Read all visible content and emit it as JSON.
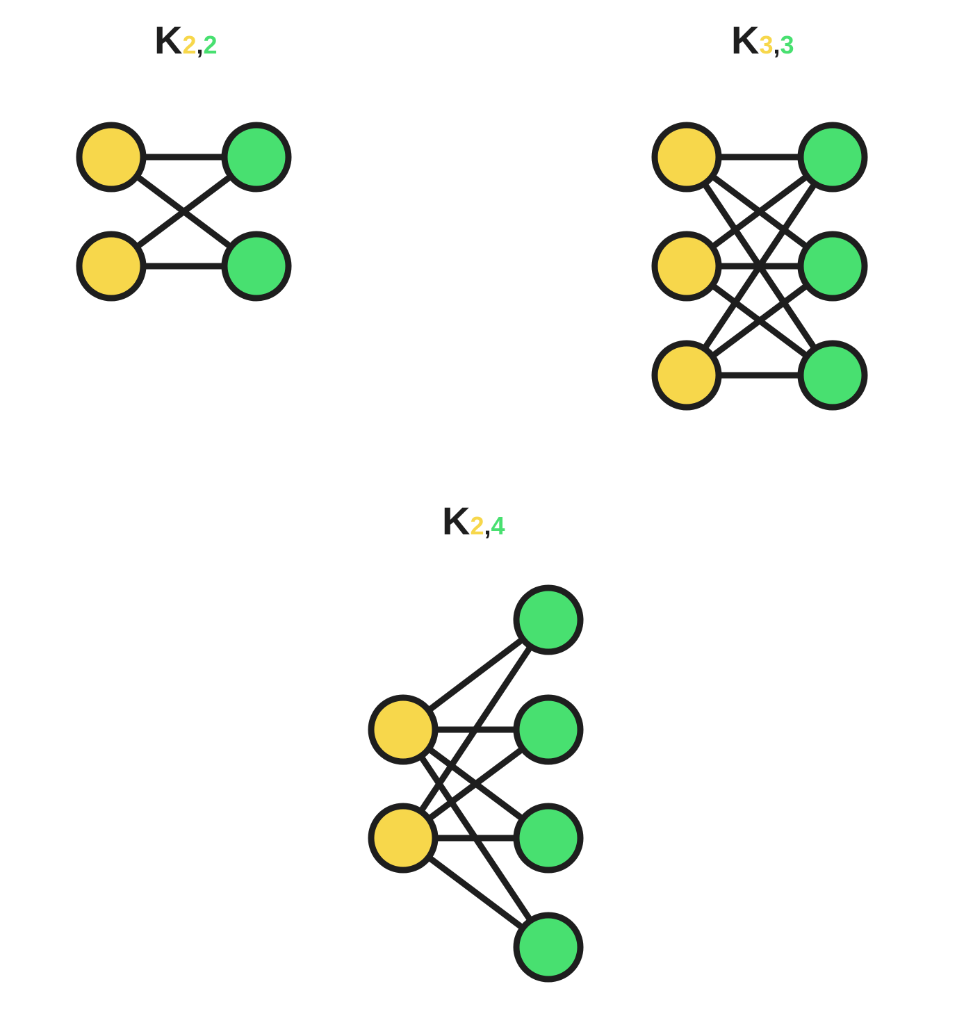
{
  "colors": {
    "part_a": "#f7d74b",
    "part_b": "#48e070",
    "stroke": "#1e1e1e",
    "background": "#ffffff"
  },
  "graphs": [
    {
      "id": "k22",
      "title": "K",
      "sub_a": "2",
      "comma": ",",
      "sub_b": "2",
      "m": 2,
      "n": 2
    },
    {
      "id": "k33",
      "title": "K",
      "sub_a": "3",
      "comma": ",",
      "sub_b": "3",
      "m": 3,
      "n": 3
    },
    {
      "id": "k24",
      "title": "K",
      "sub_a": "2",
      "comma": ",",
      "sub_b": "4",
      "m": 2,
      "n": 4
    }
  ]
}
